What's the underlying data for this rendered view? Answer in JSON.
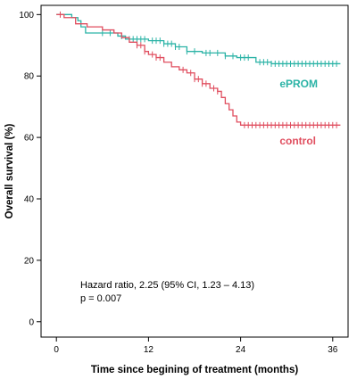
{
  "chart_data": {
    "type": "line",
    "xlabel": "Time since begining of treatment (months)",
    "ylabel": "Overall survival (%)",
    "xlim": [
      -2,
      38
    ],
    "ylim": [
      -5,
      103
    ],
    "x_ticks": [
      0,
      12,
      24,
      36
    ],
    "y_ticks": [
      0,
      20,
      40,
      60,
      80,
      100
    ],
    "grid": false,
    "annotations": [
      "Hazard ratio, 2.25 (95% CI, 1.23 – 4.13)",
      "p = 0.007"
    ],
    "series": [
      {
        "name": "ePROM",
        "color": "#2bb3a6",
        "step_points": [
          [
            0,
            100
          ],
          [
            2,
            99
          ],
          [
            2.8,
            98
          ],
          [
            3.2,
            96
          ],
          [
            3.8,
            94
          ],
          [
            8,
            93
          ],
          [
            9,
            92
          ],
          [
            12,
            91.5
          ],
          [
            14,
            90.5
          ],
          [
            15.5,
            89.5
          ],
          [
            17,
            88
          ],
          [
            19,
            87.5
          ],
          [
            22,
            86.5
          ],
          [
            23.5,
            86
          ],
          [
            26,
            84.5
          ],
          [
            28,
            84
          ],
          [
            37,
            84
          ]
        ],
        "censor_x": [
          6,
          7,
          8.5,
          9.5,
          10,
          10.5,
          11,
          11.5,
          12.5,
          13,
          13.5,
          14,
          14.5,
          15,
          15.5,
          16,
          17,
          18,
          19.5,
          20,
          21,
          22,
          23,
          24,
          24.5,
          25,
          26.5,
          27,
          27.5,
          28,
          28.5,
          29,
          29.5,
          30,
          30.5,
          31,
          31.5,
          32,
          32.5,
          33,
          33.5,
          34,
          34.5,
          35,
          35.5,
          36,
          36.5
        ]
      },
      {
        "name": "control",
        "color": "#e04e5f",
        "step_points": [
          [
            0,
            100
          ],
          [
            1,
            99
          ],
          [
            2.5,
            97
          ],
          [
            4,
            96
          ],
          [
            6,
            95
          ],
          [
            7.5,
            94
          ],
          [
            8.5,
            92.5
          ],
          [
            9.5,
            91
          ],
          [
            10.5,
            90
          ],
          [
            11.5,
            88
          ],
          [
            12,
            87
          ],
          [
            13,
            86
          ],
          [
            14,
            84.5
          ],
          [
            15,
            83
          ],
          [
            16,
            82
          ],
          [
            17,
            81
          ],
          [
            18,
            79
          ],
          [
            19,
            77.5
          ],
          [
            20,
            76
          ],
          [
            21,
            75
          ],
          [
            21.5,
            73
          ],
          [
            22,
            71
          ],
          [
            22.5,
            69
          ],
          [
            23,
            67
          ],
          [
            23.5,
            65
          ],
          [
            24,
            64
          ],
          [
            37,
            64
          ]
        ],
        "censor_x": [
          0.5,
          10.5,
          11,
          11.5,
          12.5,
          13,
          13.5,
          16.5,
          17.5,
          18,
          18.5,
          19,
          19.5,
          20.5,
          21,
          24.5,
          25,
          25.5,
          26,
          26.5,
          27,
          27.5,
          28,
          28.5,
          29,
          29.5,
          30,
          30.5,
          31,
          31.5,
          32,
          32.5,
          33,
          33.5,
          34,
          34.5,
          35,
          35.5,
          36,
          36.5
        ]
      }
    ]
  }
}
